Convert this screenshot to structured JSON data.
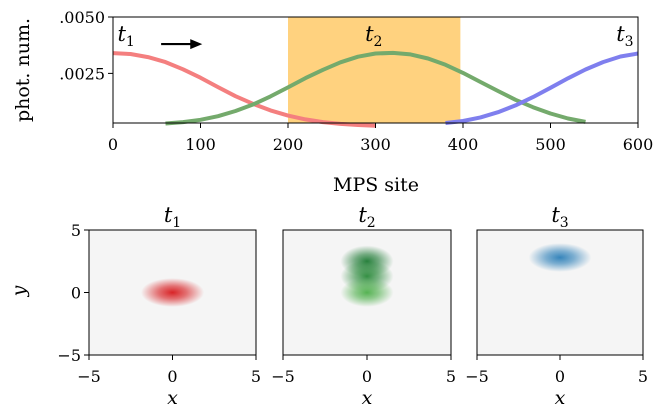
{
  "chart_data": [
    {
      "type": "line",
      "xlabel": "MPS site",
      "ylabel": "phot. num.",
      "xlim": [
        0,
        600
      ],
      "ylim": [
        0.0003,
        0.005
      ],
      "xticks": [
        "0",
        "100",
        "200",
        "300",
        "400",
        "500",
        "600"
      ],
      "yticks": [
        ".0050",
        ".0025"
      ],
      "ytick_values": [
        0.005,
        0.0025
      ],
      "highlight": {
        "x0": 200,
        "x1": 397,
        "color": "#ffd27f"
      },
      "arrow": {
        "x0": 55,
        "x1": 102,
        "y": 0.0038,
        "direction": "right"
      },
      "time_labels": [
        {
          "base": "t",
          "sub": "1",
          "x": 15,
          "y": 0.0043
        },
        {
          "base": "t",
          "sub": "2",
          "x": 298,
          "y": 0.0043
        },
        {
          "base": "t",
          "sub": "3",
          "x": 585,
          "y": 0.0043
        }
      ],
      "series": [
        {
          "color": "#f47f7f",
          "x": [
            0,
            20,
            40,
            60,
            80,
            100,
            120,
            140,
            160,
            180,
            200,
            220,
            240,
            260,
            280,
            300
          ],
          "values": [
            0.0034,
            0.00336,
            0.00322,
            0.003,
            0.00268,
            0.00231,
            0.00189,
            0.00149,
            0.00115,
            0.00086,
            0.00063,
            0.00046,
            0.00034,
            0.00026,
            0.00021,
            0.00018
          ]
        },
        {
          "color": "#74aa6c",
          "x": [
            60,
            80,
            100,
            120,
            140,
            160,
            180,
            200,
            220,
            240,
            260,
            280,
            300,
            320,
            340,
            360,
            380,
            400,
            420,
            440,
            460,
            480,
            500,
            520,
            540
          ],
          "values": [
            0.00028,
            0.00034,
            0.00044,
            0.0006,
            0.00083,
            0.00112,
            0.00148,
            0.00188,
            0.00229,
            0.00266,
            0.00299,
            0.00324,
            0.00338,
            0.00341,
            0.00334,
            0.00316,
            0.00288,
            0.00252,
            0.00212,
            0.00172,
            0.00133,
            0.001,
            0.00072,
            0.0005,
            0.00035
          ]
        },
        {
          "color": "#7f7fee",
          "x": [
            380,
            400,
            420,
            440,
            460,
            480,
            500,
            520,
            540,
            560,
            580,
            600
          ],
          "values": [
            0.0003,
            0.00039,
            0.00055,
            0.00078,
            0.00108,
            0.00145,
            0.00186,
            0.00228,
            0.00267,
            0.003,
            0.00325,
            0.00338
          ]
        }
      ]
    },
    {
      "type": "heatmap",
      "title_base": "t",
      "title_sub": "1",
      "xlabel": "x",
      "ylabel": "y",
      "xlim": [
        -5,
        5
      ],
      "ylim": [
        -5,
        5
      ],
      "xticks": [
        "−5",
        "0",
        "5"
      ],
      "yticks": [
        "5",
        "0",
        "−5"
      ],
      "blobs": [
        {
          "x": 0.0,
          "y": 0.0,
          "sx": 0.9,
          "sy": 0.55,
          "color": "#d7191c"
        }
      ]
    },
    {
      "type": "heatmap",
      "title_base": "t",
      "title_sub": "2",
      "xlabel": "x",
      "xlim": [
        -5,
        5
      ],
      "ylim": [
        -5,
        5
      ],
      "xticks": [
        "−5",
        "0",
        "5"
      ],
      "blobs": [
        {
          "x": 0.0,
          "y": 2.5,
          "sx": 0.75,
          "sy": 0.6,
          "color": "#1d7a33"
        },
        {
          "x": 0.0,
          "y": 1.3,
          "sx": 0.75,
          "sy": 0.6,
          "color": "#2a8a3a"
        },
        {
          "x": 0.0,
          "y": 0.0,
          "sx": 0.75,
          "sy": 0.55,
          "color": "#4daf4a"
        }
      ]
    },
    {
      "type": "heatmap",
      "title_base": "t",
      "title_sub": "3",
      "xlabel": "x",
      "xlim": [
        -5,
        5
      ],
      "ylim": [
        -5,
        5
      ],
      "xticks": [
        "−5",
        "0",
        "5"
      ],
      "blobs": [
        {
          "x": 0.0,
          "y": 2.8,
          "sx": 0.9,
          "sy": 0.55,
          "color": "#2c7fb8"
        }
      ]
    }
  ]
}
